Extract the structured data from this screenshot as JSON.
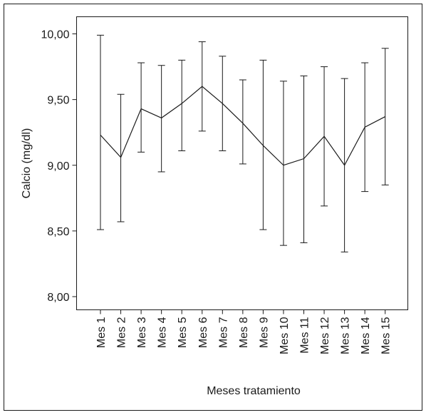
{
  "chart_data": {
    "type": "line",
    "title": "",
    "xlabel": "Meses tratamiento",
    "ylabel": "Calcio (mg/dl)",
    "ylim": [
      7.9,
      10.15
    ],
    "yticks": [
      "8,00",
      "8,50",
      "9,00",
      "9,50",
      "10,00"
    ],
    "ytick_values": [
      8.0,
      8.5,
      9.0,
      9.5,
      10.0
    ],
    "categories": [
      "Mes 1",
      "Mes 2",
      "Mes 3",
      "Mes 4",
      "Mes 5",
      "Mes 6",
      "Mes 7",
      "Mes 8",
      "Mes 9",
      "Mes 10",
      "Mes 11",
      "Mes 12",
      "Mes 13",
      "Mes 14",
      "Mes 15"
    ],
    "series": [
      {
        "values": [
          9.23,
          9.06,
          9.43,
          9.36,
          9.47,
          9.6,
          9.47,
          9.32,
          9.15,
          9.0,
          9.05,
          9.22,
          9.0,
          9.29,
          9.37
        ],
        "error_upper": [
          9.99,
          9.54,
          9.78,
          9.76,
          9.8,
          9.94,
          9.83,
          9.65,
          9.8,
          9.64,
          9.68,
          9.75,
          9.66,
          9.78,
          9.89
        ],
        "error_lower": [
          8.51,
          8.57,
          9.1,
          8.95,
          9.11,
          9.26,
          9.11,
          9.01,
          8.51,
          8.39,
          8.41,
          8.69,
          8.34,
          8.8,
          8.85
        ]
      }
    ],
    "grid": false,
    "legend": "none",
    "line_color": "#1a1a1a"
  }
}
